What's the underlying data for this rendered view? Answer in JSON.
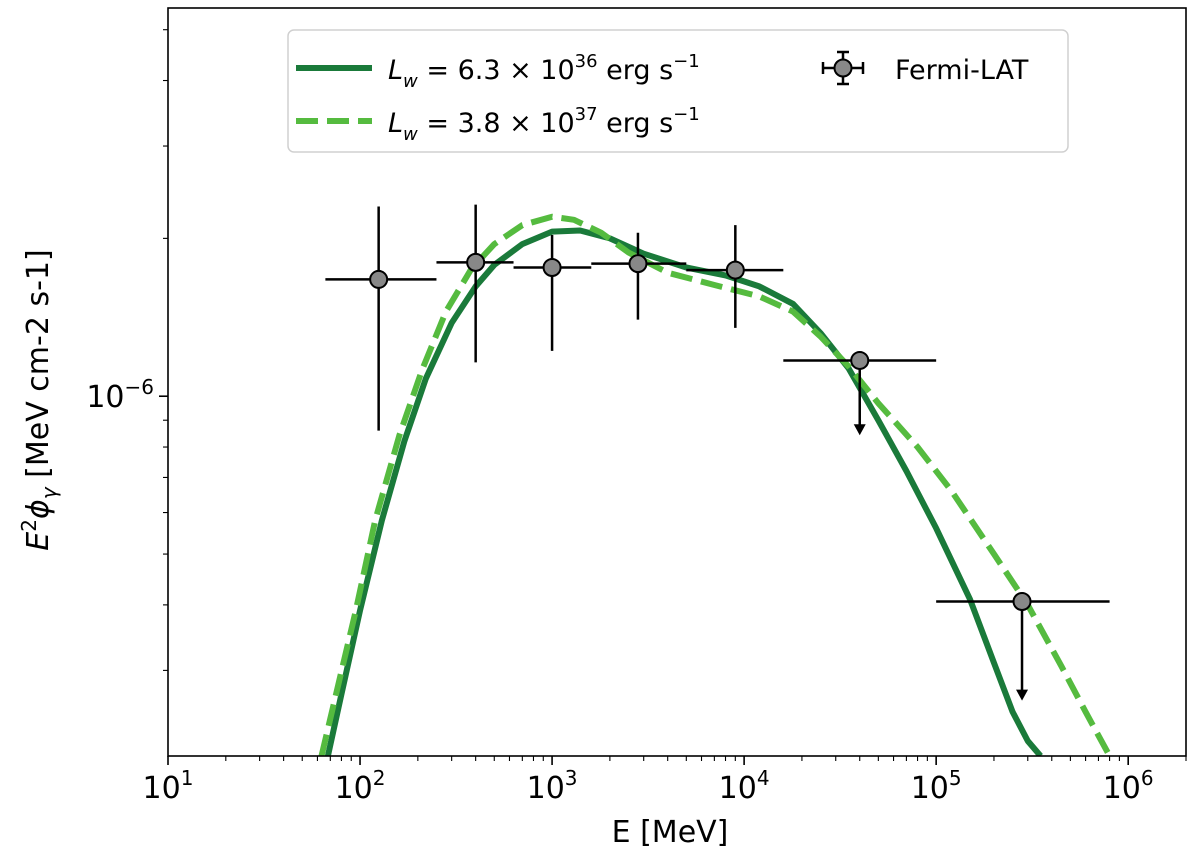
{
  "chart_data": {
    "type": "line",
    "title": "",
    "xlabel": "E [MeV]",
    "ylabel_parts": {
      "base": "E",
      "sup": "2",
      "phi": "ϕ",
      "sub": "γ",
      "unit": " [MeV cm-2 s-1]"
    },
    "xscale": "log",
    "yscale": "log",
    "xlim": [
      10,
      2000000
    ],
    "ylim": [
      2.06e-07,
      5.5e-06
    ],
    "x_ticks": [
      {
        "value": 10,
        "base": "10",
        "exp": "1"
      },
      {
        "value": 100,
        "base": "10",
        "exp": "2"
      },
      {
        "value": 1000,
        "base": "10",
        "exp": "3"
      },
      {
        "value": 10000,
        "base": "10",
        "exp": "4"
      },
      {
        "value": 100000,
        "base": "10",
        "exp": "5"
      },
      {
        "value": 1000000,
        "base": "10",
        "exp": "6"
      }
    ],
    "y_ticks": [
      {
        "value": 1e-06,
        "base": "10",
        "exp": "−6"
      }
    ],
    "legend_position": "top-center",
    "series": [
      {
        "name_parts": {
          "var": "L",
          "sub": "w",
          "pre": " = 6.3 × 10",
          "exp": "36",
          "post": " erg s",
          "unitexp": "−1"
        },
        "style": "solid",
        "color": "#1a7a3a",
        "x": [
          68,
          80,
          100,
          130,
          170,
          220,
          300,
          400,
          500,
          700,
          1000,
          1400,
          2000,
          3000,
          5000,
          8000,
          12000,
          18000,
          25000,
          35000,
          50000,
          70000,
          100000,
          150000,
          200000,
          250000,
          300000,
          350000
        ],
        "values": [
          2.06e-07,
          2.7e-07,
          3.9e-07,
          5.8e-07,
          8.2e-07,
          1.08e-06,
          1.38e-06,
          1.62e-06,
          1.78e-06,
          1.95e-06,
          2.06e-06,
          2.07e-06,
          2e-06,
          1.87e-06,
          1.76e-06,
          1.7e-06,
          1.62e-06,
          1.5e-06,
          1.32e-06,
          1.13e-06,
          9e-07,
          7.2e-07,
          5.6e-07,
          4.1e-07,
          3.1e-07,
          2.5e-07,
          2.2e-07,
          2.06e-07
        ]
      },
      {
        "name_parts": {
          "var": "L",
          "sub": "w",
          "pre": " = 3.8 × 10",
          "exp": "37",
          "post": " erg s",
          "unitexp": "−1"
        },
        "style": "dashed",
        "color": "#55bb3f",
        "x": [
          63,
          75,
          95,
          120,
          160,
          210,
          280,
          380,
          500,
          700,
          1000,
          1300,
          1800,
          2500,
          4000,
          7000,
          12000,
          18000,
          25000,
          35000,
          50000,
          80000,
          120000,
          200000,
          300000,
          450000,
          600000,
          800000
        ],
        "values": [
          2.06e-07,
          2.7e-07,
          3.9e-07,
          5.8e-07,
          8.4e-07,
          1.12e-06,
          1.45e-06,
          1.75e-06,
          1.95e-06,
          2.12e-06,
          2.2e-06,
          2.17e-06,
          2.05e-06,
          1.88e-06,
          1.72e-06,
          1.63e-06,
          1.55e-06,
          1.45e-06,
          1.3e-06,
          1.14e-06,
          9.7e-07,
          8e-07,
          6.6e-07,
          5e-07,
          4e-07,
          3.05e-07,
          2.5e-07,
          2.06e-07
        ]
      }
    ],
    "data_points": {
      "name": "Fermi-LAT",
      "color": "#888888",
      "points": [
        {
          "x": 125,
          "y": 1.67e-06,
          "xlo": 66,
          "xhi": 250,
          "ylo": 8.6e-07,
          "yhi": 2.3e-06,
          "ul": false
        },
        {
          "x": 400,
          "y": 1.8e-06,
          "xlo": 250,
          "xhi": 630,
          "ylo": 1.16e-06,
          "yhi": 2.32e-06,
          "ul": false
        },
        {
          "x": 1000,
          "y": 1.76e-06,
          "xlo": 630,
          "xhi": 1600,
          "ylo": 1.22e-06,
          "yhi": 2.03e-06,
          "ul": false
        },
        {
          "x": 2800,
          "y": 1.79e-06,
          "xlo": 1600,
          "xhi": 5000,
          "ylo": 1.4e-06,
          "yhi": 2.05e-06,
          "ul": false
        },
        {
          "x": 9000,
          "y": 1.74e-06,
          "xlo": 5000,
          "xhi": 16000,
          "ylo": 1.35e-06,
          "yhi": 2.12e-06,
          "ul": false
        },
        {
          "x": 40000,
          "y": 1.17e-06,
          "xlo": 16000,
          "xhi": 100000,
          "ylo": 8.5e-07,
          "yhi": null,
          "ul": true
        },
        {
          "x": 280000,
          "y": 4.06e-07,
          "xlo": 100000,
          "xhi": 800000,
          "ylo": 2.65e-07,
          "yhi": null,
          "ul": true
        }
      ]
    }
  }
}
